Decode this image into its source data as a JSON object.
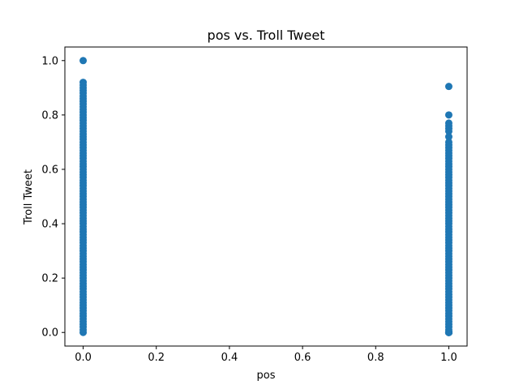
{
  "chart_data": {
    "type": "scatter",
    "title": "pos vs. Troll Tweet",
    "xlabel": "pos",
    "ylabel": "Troll Tweet",
    "xlim": [
      -0.05,
      1.05
    ],
    "ylim": [
      -0.05,
      1.05
    ],
    "xticks": [
      0.0,
      0.2,
      0.4,
      0.6,
      0.8,
      1.0
    ],
    "xtick_labels": [
      "0.0",
      "0.2",
      "0.4",
      "0.6",
      "0.8",
      "1.0"
    ],
    "yticks": [
      0.0,
      0.2,
      0.4,
      0.6,
      0.8,
      1.0
    ],
    "ytick_labels": [
      "0.0",
      "0.2",
      "0.4",
      "0.6",
      "0.8",
      "1.0"
    ],
    "grid": false,
    "color": "#1f77b4",
    "series": [
      {
        "x": [
          0,
          0,
          0,
          0,
          0,
          0,
          0,
          0,
          0,
          0,
          0,
          0,
          0,
          0,
          0,
          0,
          0,
          0,
          0,
          0,
          0,
          0,
          0,
          0,
          0,
          0,
          0,
          0,
          0,
          0,
          0,
          0,
          0,
          0,
          0,
          0,
          0,
          0,
          0,
          0,
          0,
          0,
          0,
          0,
          0,
          0,
          0,
          0,
          0,
          0,
          0,
          0,
          0,
          0,
          0,
          0,
          0,
          0,
          0,
          0,
          0,
          0,
          0,
          0,
          0,
          0,
          0,
          0,
          0,
          0,
          0,
          0,
          0,
          0,
          0,
          0,
          0,
          0,
          0,
          0,
          0,
          0,
          0,
          0,
          0,
          0,
          0,
          0,
          0,
          0,
          0,
          0,
          0,
          0,
          1,
          1,
          1,
          1,
          1,
          1,
          1,
          1,
          1,
          1,
          1,
          1,
          1,
          1,
          1,
          1,
          1,
          1,
          1,
          1,
          1,
          1,
          1,
          1,
          1,
          1,
          1,
          1,
          1,
          1,
          1,
          1,
          1,
          1,
          1,
          1,
          1,
          1,
          1,
          1,
          1,
          1,
          1,
          1,
          1,
          1,
          1,
          1,
          1,
          1,
          1,
          1,
          1,
          1,
          1,
          1,
          1,
          1,
          1,
          1,
          1,
          1,
          1,
          1,
          1,
          1,
          1,
          1,
          1,
          1,
          1,
          1,
          1,
          1,
          1,
          1,
          1,
          1,
          1,
          1,
          1,
          1,
          1,
          1,
          1,
          1,
          1,
          1,
          1,
          1,
          1
        ],
        "y": [
          1.0,
          0.92,
          0.91,
          0.9,
          0.89,
          0.88,
          0.87,
          0.86,
          0.85,
          0.84,
          0.83,
          0.82,
          0.81,
          0.8,
          0.79,
          0.78,
          0.77,
          0.76,
          0.75,
          0.74,
          0.73,
          0.72,
          0.71,
          0.7,
          0.69,
          0.68,
          0.67,
          0.66,
          0.65,
          0.64,
          0.63,
          0.62,
          0.61,
          0.6,
          0.59,
          0.58,
          0.57,
          0.56,
          0.55,
          0.54,
          0.53,
          0.52,
          0.51,
          0.5,
          0.49,
          0.48,
          0.47,
          0.46,
          0.45,
          0.44,
          0.43,
          0.42,
          0.41,
          0.4,
          0.39,
          0.38,
          0.37,
          0.36,
          0.35,
          0.34,
          0.33,
          0.32,
          0.31,
          0.3,
          0.29,
          0.28,
          0.27,
          0.26,
          0.25,
          0.24,
          0.23,
          0.22,
          0.21,
          0.2,
          0.19,
          0.18,
          0.17,
          0.16,
          0.15,
          0.14,
          0.13,
          0.12,
          0.11,
          0.1,
          0.09,
          0.08,
          0.07,
          0.06,
          0.05,
          0.04,
          0.03,
          0.02,
          0.01,
          0.0,
          0.905,
          0.8,
          0.77,
          0.76,
          0.75,
          0.74,
          0.72,
          0.7,
          0.69,
          0.68,
          0.67,
          0.66,
          0.65,
          0.64,
          0.63,
          0.62,
          0.61,
          0.6,
          0.59,
          0.58,
          0.57,
          0.56,
          0.55,
          0.54,
          0.53,
          0.52,
          0.51,
          0.5,
          0.49,
          0.48,
          0.47,
          0.46,
          0.45,
          0.44,
          0.43,
          0.42,
          0.41,
          0.4,
          0.39,
          0.38,
          0.37,
          0.36,
          0.35,
          0.34,
          0.33,
          0.32,
          0.31,
          0.3,
          0.29,
          0.28,
          0.27,
          0.26,
          0.25,
          0.24,
          0.23,
          0.22,
          0.21,
          0.2,
          0.19,
          0.18,
          0.17,
          0.16,
          0.15,
          0.14,
          0.13,
          0.12,
          0.11,
          0.1,
          0.09,
          0.08,
          0.07,
          0.06,
          0.05,
          0.04,
          0.03,
          0.02,
          0.01,
          0.0,
          0.0,
          0.0,
          0.0,
          0.0,
          0.0,
          0.0,
          0.0,
          0.0,
          0.0,
          0.0,
          0.0,
          0.0,
          0.0
        ]
      }
    ]
  }
}
